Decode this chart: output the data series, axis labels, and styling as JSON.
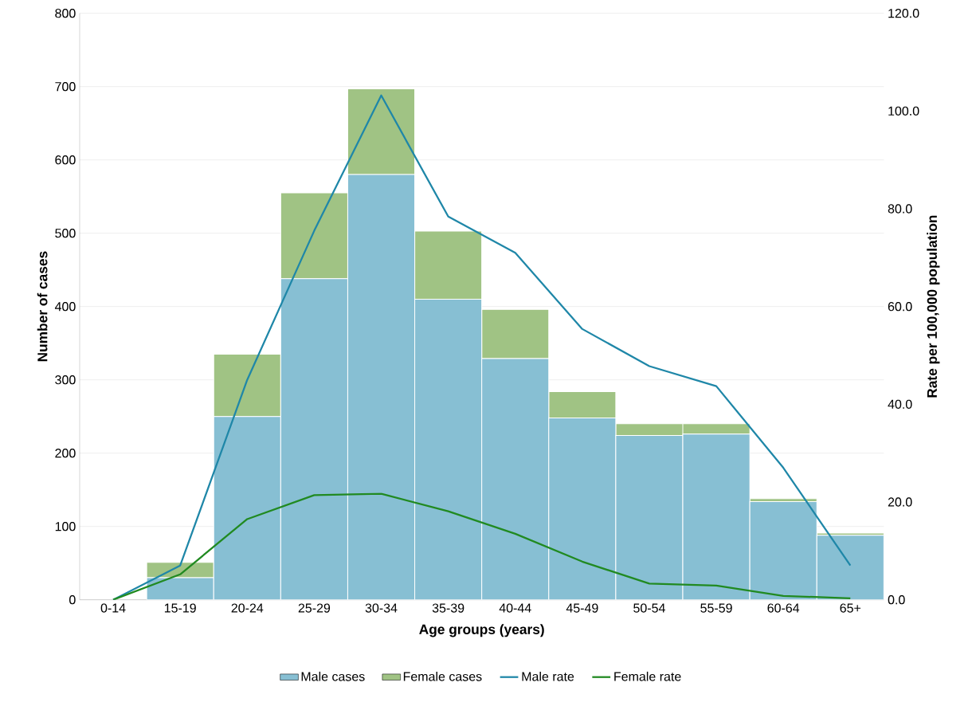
{
  "chart_data": {
    "type": "bar",
    "stacked": true,
    "xlabel": "Age groups (years)",
    "ylabel": "Number of cases",
    "y2label": "Rate per 100,000 population",
    "categories": [
      "0-14",
      "15-19",
      "20-24",
      "25-29",
      "30-34",
      "35-39",
      "40-44",
      "45-49",
      "50-54",
      "55-59",
      "60-64",
      "65+"
    ],
    "series": [
      {
        "name": "Male cases",
        "color": "#87bfd3",
        "values": [
          0,
          30,
          250,
          438,
          580,
          410,
          329,
          248,
          224,
          226,
          134,
          88
        ]
      },
      {
        "name": "Female cases",
        "color": "#a0c384",
        "values": [
          0,
          21,
          85,
          117,
          117,
          93,
          67,
          36,
          16,
          14,
          4,
          3
        ]
      },
      {
        "name": "Male rate",
        "type": "line",
        "axis": "y2",
        "color": "#1f87a8",
        "values": [
          0,
          7.0,
          45,
          75.5,
          103.2,
          78.4,
          71,
          55.4,
          47.8,
          43.7,
          27,
          7
        ]
      },
      {
        "name": "Female rate",
        "type": "line",
        "axis": "y2",
        "color": "#218a21",
        "values": [
          0,
          5.2,
          16.5,
          21.4,
          21.7,
          18.1,
          13.5,
          7.8,
          3.3,
          2.9,
          0.8,
          0.3
        ]
      }
    ],
    "ylim": [
      0,
      800
    ],
    "yticks": [
      0,
      100,
      200,
      300,
      400,
      500,
      600,
      700,
      800
    ],
    "y2lim": [
      0,
      120
    ],
    "y2ticks": [
      {
        "value": 0,
        "label": "0.0"
      },
      {
        "value": 20,
        "label": "20.0"
      },
      {
        "value": 40,
        "label": "40.0"
      },
      {
        "value": 60,
        "label": "60.0"
      },
      {
        "value": 80,
        "label": "80.0"
      },
      {
        "value": 100,
        "label": "100.0"
      },
      {
        "value": 120,
        "label": "120.0"
      }
    ],
    "grid": "y",
    "legend": "bottom",
    "marker": "none",
    "line_style": "solid"
  }
}
